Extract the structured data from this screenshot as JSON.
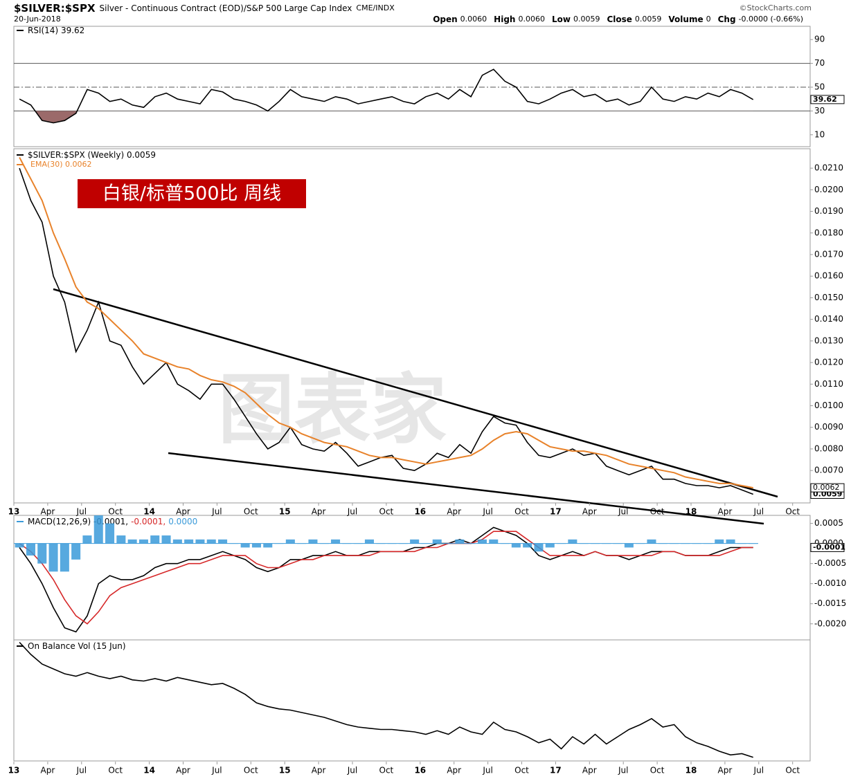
{
  "header": {
    "symbol": "$SILVER:$SPX",
    "description": "Silver - Continuous Contract (EOD)/S&P 500 Large Cap Index",
    "exchange": "CME/INDX",
    "date": "20-Jun-2018",
    "copyright": "©StockCharts.com",
    "quote": [
      {
        "label": "Open",
        "value": "0.0060"
      },
      {
        "label": "High",
        "value": "0.0060"
      },
      {
        "label": "Low",
        "value": "0.0059"
      },
      {
        "label": "Close",
        "value": "0.0059"
      },
      {
        "label": "Volume",
        "value": "0"
      },
      {
        "label": "Chg",
        "value": "-0.0000 (-0.66%)"
      }
    ]
  },
  "banner": "白银/标普500比  周线",
  "watermark": "图表家",
  "time_axis": {
    "ticks": [
      {
        "value": "2013-01",
        "label": "13"
      },
      {
        "value": "2013-04",
        "label": "Apr"
      },
      {
        "value": "2013-07",
        "label": "Jul"
      },
      {
        "value": "2013-10",
        "label": "Oct"
      },
      {
        "value": "2014-01",
        "label": "14"
      },
      {
        "value": "2014-04",
        "label": "Apr"
      },
      {
        "value": "2014-07",
        "label": "Jul"
      },
      {
        "value": "2014-10",
        "label": "Oct"
      },
      {
        "value": "2015-01",
        "label": "15"
      },
      {
        "value": "2015-04",
        "label": "Apr"
      },
      {
        "value": "2015-07",
        "label": "Jul"
      },
      {
        "value": "2015-10",
        "label": "Oct"
      },
      {
        "value": "2016-01",
        "label": "16"
      },
      {
        "value": "2016-04",
        "label": "Apr"
      },
      {
        "value": "2016-07",
        "label": "Jul"
      },
      {
        "value": "2016-10",
        "label": "Oct"
      },
      {
        "value": "2017-01",
        "label": "17"
      },
      {
        "value": "2017-04",
        "label": "Apr"
      },
      {
        "value": "2017-07",
        "label": "Jul"
      },
      {
        "value": "2017-10",
        "label": "Oct"
      },
      {
        "value": "2018-01",
        "label": "18"
      },
      {
        "value": "2018-04",
        "label": "Apr"
      },
      {
        "value": "2018-07",
        "label": "Jul"
      },
      {
        "value": "2018-10",
        "label": "Oct"
      }
    ]
  },
  "chart_data": [
    {
      "type": "line",
      "x": [
        "2013-01",
        "2013-02",
        "2013-03",
        "2013-04",
        "2013-05",
        "2013-06",
        "2013-07",
        "2013-08",
        "2013-09",
        "2013-10",
        "2013-11",
        "2013-12",
        "2014-01",
        "2014-02",
        "2014-03",
        "2014-04",
        "2014-05",
        "2014-06",
        "2014-07",
        "2014-08",
        "2014-09",
        "2014-10",
        "2014-11",
        "2014-12",
        "2015-01",
        "2015-02",
        "2015-03",
        "2015-04",
        "2015-05",
        "2015-06",
        "2015-07",
        "2015-08",
        "2015-09",
        "2015-10",
        "2015-11",
        "2015-12",
        "2016-01",
        "2016-02",
        "2016-03",
        "2016-04",
        "2016-05",
        "2016-06",
        "2016-07",
        "2016-08",
        "2016-09",
        "2016-10",
        "2016-11",
        "2016-12",
        "2017-01",
        "2017-02",
        "2017-03",
        "2017-04",
        "2017-05",
        "2017-06",
        "2017-07",
        "2017-08",
        "2017-09",
        "2017-10",
        "2017-11",
        "2017-12",
        "2018-01",
        "2018-02",
        "2018-03",
        "2018-04",
        "2018-05",
        "2018-06"
      ],
      "ylim": [
        0,
        100
      ],
      "yticks": [
        10,
        30,
        50,
        70,
        90
      ],
      "ref_lines": [
        70,
        50,
        30
      ],
      "fill_below": 30,
      "fill_color": "#9b6a6a",
      "series": [
        {
          "name": "RSI(14) 39.62",
          "tag": "39.62",
          "color": "#000000",
          "values": [
            40,
            35,
            22,
            20,
            22,
            28,
            48,
            45,
            38,
            40,
            35,
            33,
            42,
            45,
            40,
            38,
            36,
            48,
            46,
            40,
            38,
            35,
            30,
            38,
            48,
            42,
            40,
            38,
            42,
            40,
            36,
            38,
            40,
            42,
            38,
            36,
            42,
            45,
            40,
            48,
            42,
            60,
            65,
            55,
            50,
            38,
            36,
            40,
            45,
            48,
            42,
            44,
            38,
            40,
            35,
            38,
            50,
            40,
            38,
            42,
            40,
            45,
            42,
            48,
            45,
            39.62
          ]
        }
      ]
    },
    {
      "type": "line",
      "x": [
        "2013-01",
        "2013-02",
        "2013-03",
        "2013-04",
        "2013-05",
        "2013-06",
        "2013-07",
        "2013-08",
        "2013-09",
        "2013-10",
        "2013-11",
        "2013-12",
        "2014-01",
        "2014-02",
        "2014-03",
        "2014-04",
        "2014-05",
        "2014-06",
        "2014-07",
        "2014-08",
        "2014-09",
        "2014-10",
        "2014-11",
        "2014-12",
        "2015-01",
        "2015-02",
        "2015-03",
        "2015-04",
        "2015-05",
        "2015-06",
        "2015-07",
        "2015-08",
        "2015-09",
        "2015-10",
        "2015-11",
        "2015-12",
        "2016-01",
        "2016-02",
        "2016-03",
        "2016-04",
        "2016-05",
        "2016-06",
        "2016-07",
        "2016-08",
        "2016-09",
        "2016-10",
        "2016-11",
        "2016-12",
        "2017-01",
        "2017-02",
        "2017-03",
        "2017-04",
        "2017-05",
        "2017-06",
        "2017-07",
        "2017-08",
        "2017-09",
        "2017-10",
        "2017-11",
        "2017-12",
        "2018-01",
        "2018-02",
        "2018-03",
        "2018-04",
        "2018-05",
        "2018-06"
      ],
      "ylim": [
        0.0055,
        0.0219
      ],
      "yticks": [
        {
          "value": 0.006,
          "label": "0.0060"
        },
        {
          "value": 0.007,
          "label": "0.0070"
        },
        {
          "value": 0.008,
          "label": "0.0080"
        },
        {
          "value": 0.009,
          "label": "0.0090"
        },
        {
          "value": 0.01,
          "label": "0.0100"
        },
        {
          "value": 0.011,
          "label": "0.0110"
        },
        {
          "value": 0.012,
          "label": "0.0120"
        },
        {
          "value": 0.013,
          "label": "0.0130"
        },
        {
          "value": 0.014,
          "label": "0.0140"
        },
        {
          "value": 0.015,
          "label": "0.0150"
        },
        {
          "value": 0.016,
          "label": "0.0160"
        },
        {
          "value": 0.017,
          "label": "0.0170"
        },
        {
          "value": 0.018,
          "label": "0.0180"
        },
        {
          "value": 0.019,
          "label": "0.0190"
        },
        {
          "value": 0.02,
          "label": "0.0200"
        },
        {
          "value": 0.021,
          "label": "0.0210"
        }
      ],
      "series": [
        {
          "name": "$SILVER:$SPX (Weekly) 0.0059",
          "tag": "0.0059",
          "color": "#000000",
          "values": [
            0.021,
            0.0195,
            0.0185,
            0.016,
            0.0148,
            0.0125,
            0.0135,
            0.0148,
            0.013,
            0.0128,
            0.0118,
            0.011,
            0.0115,
            0.012,
            0.011,
            0.0107,
            0.0103,
            0.011,
            0.011,
            0.0103,
            0.0095,
            0.0087,
            0.008,
            0.0083,
            0.009,
            0.0082,
            0.008,
            0.0079,
            0.0083,
            0.0078,
            0.0072,
            0.0074,
            0.0076,
            0.0077,
            0.0071,
            0.007,
            0.0073,
            0.0078,
            0.0076,
            0.0082,
            0.0078,
            0.0088,
            0.0095,
            0.0092,
            0.0091,
            0.0083,
            0.0077,
            0.0076,
            0.0078,
            0.008,
            0.0077,
            0.0078,
            0.0072,
            0.007,
            0.0068,
            0.007,
            0.0072,
            0.0066,
            0.0066,
            0.0064,
            0.0063,
            0.0063,
            0.0062,
            0.0063,
            0.0061,
            0.0059
          ]
        },
        {
          "name": "EMA(30) 0.0062",
          "tag": "0.0062",
          "color": "#e8822a",
          "values": [
            0.0215,
            0.0205,
            0.0195,
            0.018,
            0.0168,
            0.0155,
            0.0148,
            0.0145,
            0.014,
            0.0135,
            0.013,
            0.0124,
            0.0122,
            0.012,
            0.0118,
            0.0117,
            0.0114,
            0.0112,
            0.0111,
            0.0109,
            0.0106,
            0.0101,
            0.0096,
            0.0092,
            0.009,
            0.0087,
            0.0085,
            0.0083,
            0.0082,
            0.0081,
            0.0079,
            0.0077,
            0.0076,
            0.0076,
            0.0075,
            0.0074,
            0.0073,
            0.0074,
            0.0075,
            0.0076,
            0.0077,
            0.008,
            0.0084,
            0.0087,
            0.0088,
            0.0087,
            0.0084,
            0.0081,
            0.008,
            0.0079,
            0.0079,
            0.0078,
            0.0077,
            0.0075,
            0.0073,
            0.0072,
            0.0071,
            0.007,
            0.0069,
            0.0067,
            0.0066,
            0.0065,
            0.0064,
            0.0064,
            0.0063,
            0.0062
          ]
        }
      ]
    },
    {
      "type": "line",
      "x": [
        "2013-01",
        "2013-02",
        "2013-03",
        "2013-04",
        "2013-05",
        "2013-06",
        "2013-07",
        "2013-08",
        "2013-09",
        "2013-10",
        "2013-11",
        "2013-12",
        "2014-01",
        "2014-02",
        "2014-03",
        "2014-04",
        "2014-05",
        "2014-06",
        "2014-07",
        "2014-08",
        "2014-09",
        "2014-10",
        "2014-11",
        "2014-12",
        "2015-01",
        "2015-02",
        "2015-03",
        "2015-04",
        "2015-05",
        "2015-06",
        "2015-07",
        "2015-08",
        "2015-09",
        "2015-10",
        "2015-11",
        "2015-12",
        "2016-01",
        "2016-02",
        "2016-03",
        "2016-04",
        "2016-05",
        "2016-06",
        "2016-07",
        "2016-08",
        "2016-09",
        "2016-10",
        "2016-11",
        "2016-12",
        "2017-01",
        "2017-02",
        "2017-03",
        "2017-04",
        "2017-05",
        "2017-06",
        "2017-07",
        "2017-08",
        "2017-09",
        "2017-10",
        "2017-11",
        "2017-12",
        "2018-01",
        "2018-02",
        "2018-03",
        "2018-04",
        "2018-05",
        "2018-06"
      ],
      "ylim": [
        -0.0024,
        0.0007
      ],
      "yticks": [
        {
          "value": 0.0005,
          "label": "0.0005"
        },
        {
          "value": 0,
          "label": "0.0000"
        },
        {
          "value": -0.0005,
          "label": "-0.0005"
        },
        {
          "value": -0.001,
          "label": "-0.0010"
        },
        {
          "value": -0.0015,
          "label": "-0.0015"
        },
        {
          "value": -0.002,
          "label": "-0.0020"
        }
      ],
      "series": [
        {
          "name": "MACD(12,26,9) -0.0001,",
          "tag": "-0.0001",
          "color": "#000000",
          "values": [
            -0.0001,
            -0.0005,
            -0.001,
            -0.0016,
            -0.0021,
            -0.0022,
            -0.0018,
            -0.001,
            -0.0008,
            -0.0009,
            -0.0009,
            -0.0008,
            -0.0006,
            -0.0005,
            -0.0005,
            -0.0004,
            -0.0004,
            -0.0003,
            -0.0002,
            -0.0003,
            -0.0004,
            -0.0006,
            -0.0007,
            -0.0006,
            -0.0004,
            -0.0004,
            -0.0003,
            -0.0003,
            -0.0002,
            -0.0003,
            -0.0003,
            -0.0002,
            -0.0002,
            -0.0002,
            -0.0002,
            -0.0001,
            -0.0001,
            0,
            0,
            0.0001,
            0,
            0.0002,
            0.0004,
            0.0003,
            0.0002,
            0,
            -0.0003,
            -0.0004,
            -0.0003,
            -0.0002,
            -0.0003,
            -0.0002,
            -0.0003,
            -0.0003,
            -0.0004,
            -0.0003,
            -0.0002,
            -0.0002,
            -0.0002,
            -0.0003,
            -0.0003,
            -0.0003,
            -0.0002,
            -0.0001,
            -0.0001,
            -0.0001
          ]
        },
        {
          "name": "-0.0001,",
          "color": "#d62728",
          "values": [
            0,
            -0.0002,
            -0.0005,
            -0.0009,
            -0.0014,
            -0.0018,
            -0.002,
            -0.0017,
            -0.0013,
            -0.0011,
            -0.001,
            -0.0009,
            -0.0008,
            -0.0007,
            -0.0006,
            -0.0005,
            -0.0005,
            -0.0004,
            -0.0003,
            -0.0003,
            -0.0003,
            -0.0005,
            -0.0006,
            -0.0006,
            -0.0005,
            -0.0004,
            -0.0004,
            -0.0003,
            -0.0003,
            -0.0003,
            -0.0003,
            -0.0003,
            -0.0002,
            -0.0002,
            -0.0002,
            -0.0002,
            -0.0001,
            -0.0001,
            0,
            0,
            0,
            0.0001,
            0.0003,
            0.0003,
            0.0003,
            0.0001,
            -0.0001,
            -0.0003,
            -0.0003,
            -0.0003,
            -0.0003,
            -0.0002,
            -0.0003,
            -0.0003,
            -0.0003,
            -0.0003,
            -0.0003,
            -0.0002,
            -0.0002,
            -0.0003,
            -0.0003,
            -0.0003,
            -0.0003,
            -0.0002,
            -0.0001,
            -0.0001
          ]
        },
        {
          "name": "0.0000",
          "type": "bar",
          "color": "#3a9ad9",
          "values": [
            -0.0001,
            -0.0003,
            -0.0005,
            -0.0007,
            -0.0007,
            -0.0004,
            0.0002,
            0.0007,
            0.0005,
            0.0002,
            0.0001,
            0.0001,
            0.0002,
            0.0002,
            0.0001,
            0.0001,
            0.0001,
            0.0001,
            0.0001,
            0,
            -0.0001,
            -0.0001,
            -0.0001,
            0,
            0.0001,
            0,
            0.0001,
            0,
            0.0001,
            0,
            0,
            0.0001,
            0,
            0,
            0,
            0.0001,
            0,
            0.0001,
            0,
            0.0001,
            0,
            0.0001,
            0.0001,
            0,
            -0.0001,
            -0.0001,
            -0.0002,
            -0.0001,
            0,
            0.0001,
            0,
            0,
            0,
            0,
            -0.0001,
            0,
            0.0001,
            0,
            0,
            0,
            0,
            0,
            0.0001,
            0.0001,
            0,
            0
          ]
        }
      ]
    },
    {
      "type": "line",
      "x": [
        "2013-01",
        "2013-02",
        "2013-03",
        "2013-04",
        "2013-05",
        "2013-06",
        "2013-07",
        "2013-08",
        "2013-09",
        "2013-10",
        "2013-11",
        "2013-12",
        "2014-01",
        "2014-02",
        "2014-03",
        "2014-04",
        "2014-05",
        "2014-06",
        "2014-07",
        "2014-08",
        "2014-09",
        "2014-10",
        "2014-11",
        "2014-12",
        "2015-01",
        "2015-02",
        "2015-03",
        "2015-04",
        "2015-05",
        "2015-06",
        "2015-07",
        "2015-08",
        "2015-09",
        "2015-10",
        "2015-11",
        "2015-12",
        "2016-01",
        "2016-02",
        "2016-03",
        "2016-04",
        "2016-05",
        "2016-06",
        "2016-07",
        "2016-08",
        "2016-09",
        "2016-10",
        "2016-11",
        "2016-12",
        "2017-01",
        "2017-02",
        "2017-03",
        "2017-04",
        "2017-05",
        "2017-06",
        "2017-07",
        "2017-08",
        "2017-09",
        "2017-10",
        "2017-11",
        "2017-12",
        "2018-01",
        "2018-02",
        "2018-03",
        "2018-04",
        "2018-05",
        "2018-06"
      ],
      "ylim": [
        0,
        100
      ],
      "series": [
        {
          "name": "On Balance Vol (15 Jun)",
          "color": "#000000",
          "values": [
            98,
            88,
            80,
            76,
            72,
            70,
            73,
            70,
            68,
            70,
            67,
            66,
            68,
            66,
            69,
            67,
            65,
            63,
            64,
            60,
            55,
            48,
            45,
            43,
            42,
            40,
            38,
            36,
            33,
            30,
            28,
            27,
            26,
            26,
            25,
            24,
            22,
            25,
            22,
            28,
            24,
            22,
            32,
            26,
            24,
            20,
            15,
            18,
            10,
            20,
            14,
            22,
            14,
            20,
            26,
            30,
            35,
            28,
            30,
            20,
            15,
            12,
            8,
            5,
            6,
            3
          ]
        }
      ]
    }
  ]
}
